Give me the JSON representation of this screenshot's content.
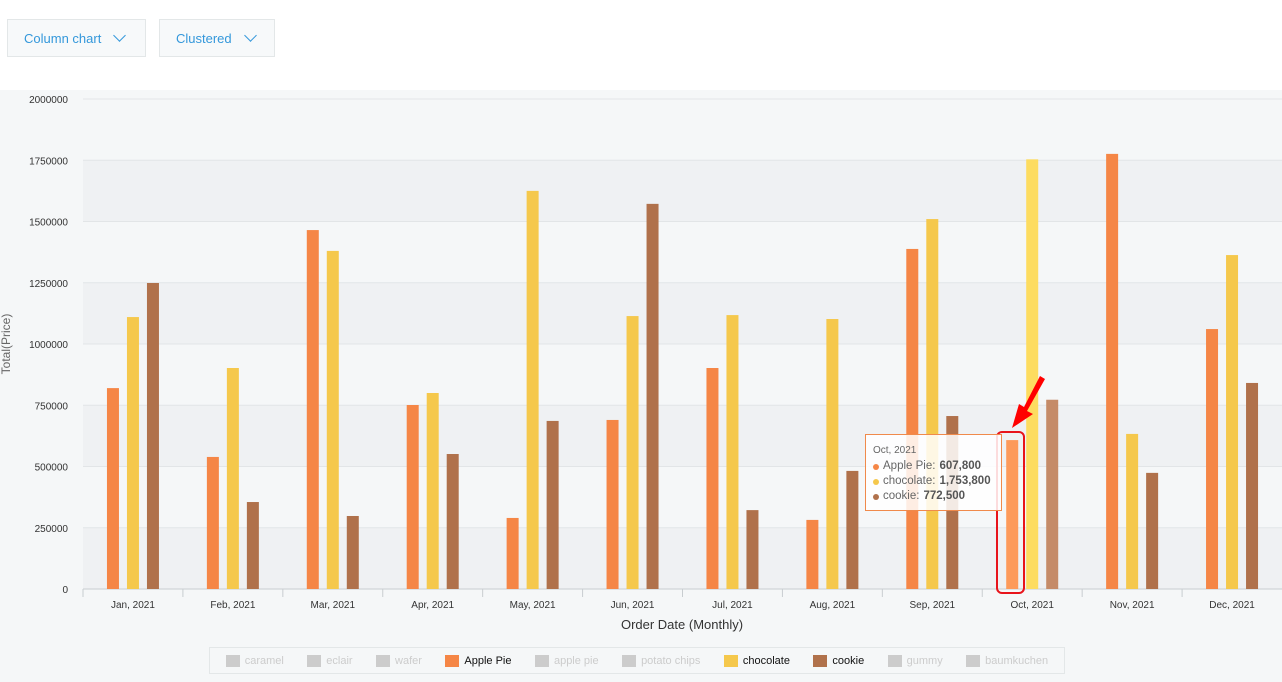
{
  "controls": {
    "chart_type": "Column chart",
    "layout": "Clustered"
  },
  "chart_data": {
    "type": "bar",
    "xlabel": "Order Date (Monthly)",
    "ylabel": "Total(Price)",
    "ylim": [
      0,
      2000000
    ],
    "yticks": [
      "0",
      "250000",
      "500000",
      "750000",
      "1000000",
      "1250000",
      "1500000",
      "1750000",
      "2000000"
    ],
    "categories": [
      "Jan, 2021",
      "Feb, 2021",
      "Mar, 2021",
      "Apr, 2021",
      "May, 2021",
      "Jun, 2021",
      "Jul, 2021",
      "Aug, 2021",
      "Sep, 2021",
      "Oct, 2021",
      "Nov, 2021",
      "Dec, 2021"
    ],
    "series": [
      {
        "name": "Apple Pie",
        "color": "#f58646",
        "values": [
          820000,
          539000,
          1465000,
          751000,
          290000,
          690000,
          902000,
          282000,
          1388000,
          607800,
          1776000,
          1061000
        ]
      },
      {
        "name": "chocolate",
        "color": "#f5c84c",
        "values": [
          1110000,
          902000,
          1380000,
          800000,
          1625000,
          1114000,
          1118000,
          1102000,
          1510000,
          1753800,
          633000,
          1363000
        ]
      },
      {
        "name": "cookie",
        "color": "#b0714b",
        "values": [
          1249000,
          355000,
          298000,
          551000,
          686000,
          1572000,
          322000,
          482000,
          706000,
          772500,
          474000,
          841000
        ]
      }
    ],
    "highlighted_category": "Oct, 2021",
    "legend_position": "bottom",
    "grid": true
  },
  "legend": [
    {
      "label": "caramel",
      "color": "#cccccc",
      "active": false
    },
    {
      "label": "eclair",
      "color": "#cccccc",
      "active": false
    },
    {
      "label": "wafer",
      "color": "#cccccc",
      "active": false
    },
    {
      "label": "Apple Pie",
      "color": "#f58646",
      "active": true
    },
    {
      "label": "apple pie",
      "color": "#cccccc",
      "active": false
    },
    {
      "label": "potato chips",
      "color": "#cccccc",
      "active": false
    },
    {
      "label": "chocolate",
      "color": "#f5c84c",
      "active": true
    },
    {
      "label": "cookie",
      "color": "#b0714b",
      "active": true
    },
    {
      "label": "gummy",
      "color": "#cccccc",
      "active": false
    },
    {
      "label": "baumkuchen",
      "color": "#cccccc",
      "active": false
    }
  ],
  "tooltip": {
    "title": "Oct, 2021",
    "rows": [
      {
        "label": "Apple Pie: ",
        "value": "607,800",
        "color": "#f58646"
      },
      {
        "label": "chocolate: ",
        "value": "1,753,800",
        "color": "#f5c84c"
      },
      {
        "label": "cookie: ",
        "value": "772,500",
        "color": "#b0714b"
      }
    ]
  }
}
